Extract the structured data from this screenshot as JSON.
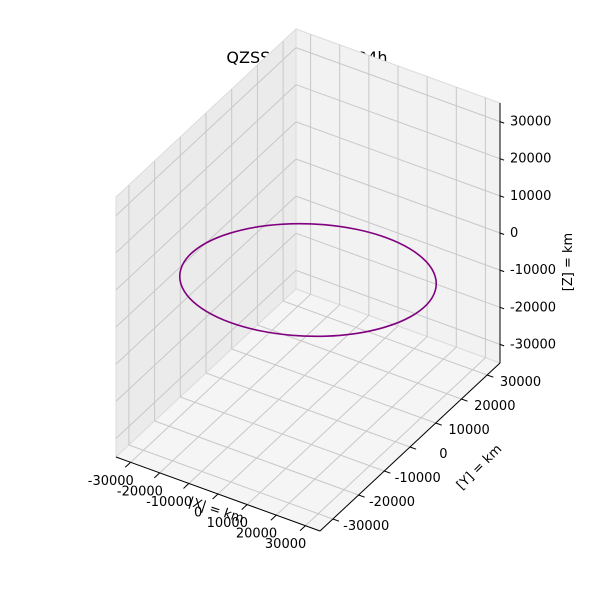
{
  "chart_data": {
    "type": "line3d",
    "title": "QZSS03 Inertial 24h",
    "xlabel": "|X| = km",
    "ylabel": "[Y] = km",
    "zlabel": "[Z] = km",
    "xlim": [
      -35000,
      35000
    ],
    "ylim": [
      -35000,
      35000
    ],
    "zlim": [
      -35000,
      35000
    ],
    "xticks": [
      -30000,
      -20000,
      -10000,
      0,
      10000,
      20000,
      30000
    ],
    "yticks": [
      -30000,
      -20000,
      -10000,
      0,
      10000,
      20000,
      30000
    ],
    "zticks": [
      -30000,
      -20000,
      -10000,
      0,
      10000,
      20000,
      30000
    ],
    "grid": true,
    "series": [
      {
        "color": "#800080",
        "points": [
          [
            35000,
            0,
            0
          ],
          [
            33807,
            -7819,
            2095
          ],
          [
            30311,
            -15106,
            4048
          ],
          [
            24749,
            -21374,
            5727
          ],
          [
            17500,
            -26179,
            7015
          ],
          [
            9059,
            -29197,
            7823
          ],
          [
            0,
            -30226,
            8099
          ],
          [
            -9059,
            -29197,
            7823
          ],
          [
            -17500,
            -26179,
            7015
          ],
          [
            -24749,
            -21374,
            5727
          ],
          [
            -30311,
            -15106,
            4048
          ],
          [
            -33807,
            -7819,
            2095
          ],
          [
            -35000,
            0,
            0
          ],
          [
            -33807,
            7819,
            -2095
          ],
          [
            -30311,
            15106,
            -4048
          ],
          [
            -24749,
            21374,
            -5727
          ],
          [
            -17500,
            26179,
            -7015
          ],
          [
            -9059,
            29197,
            -7823
          ],
          [
            0,
            30226,
            -8099
          ],
          [
            9059,
            29197,
            -7823
          ],
          [
            17500,
            26179,
            -7015
          ],
          [
            24749,
            21374,
            -5727
          ],
          [
            30311,
            15106,
            -4048
          ],
          [
            33807,
            7819,
            -2095
          ],
          [
            35000,
            0,
            0
          ]
        ]
      }
    ]
  }
}
